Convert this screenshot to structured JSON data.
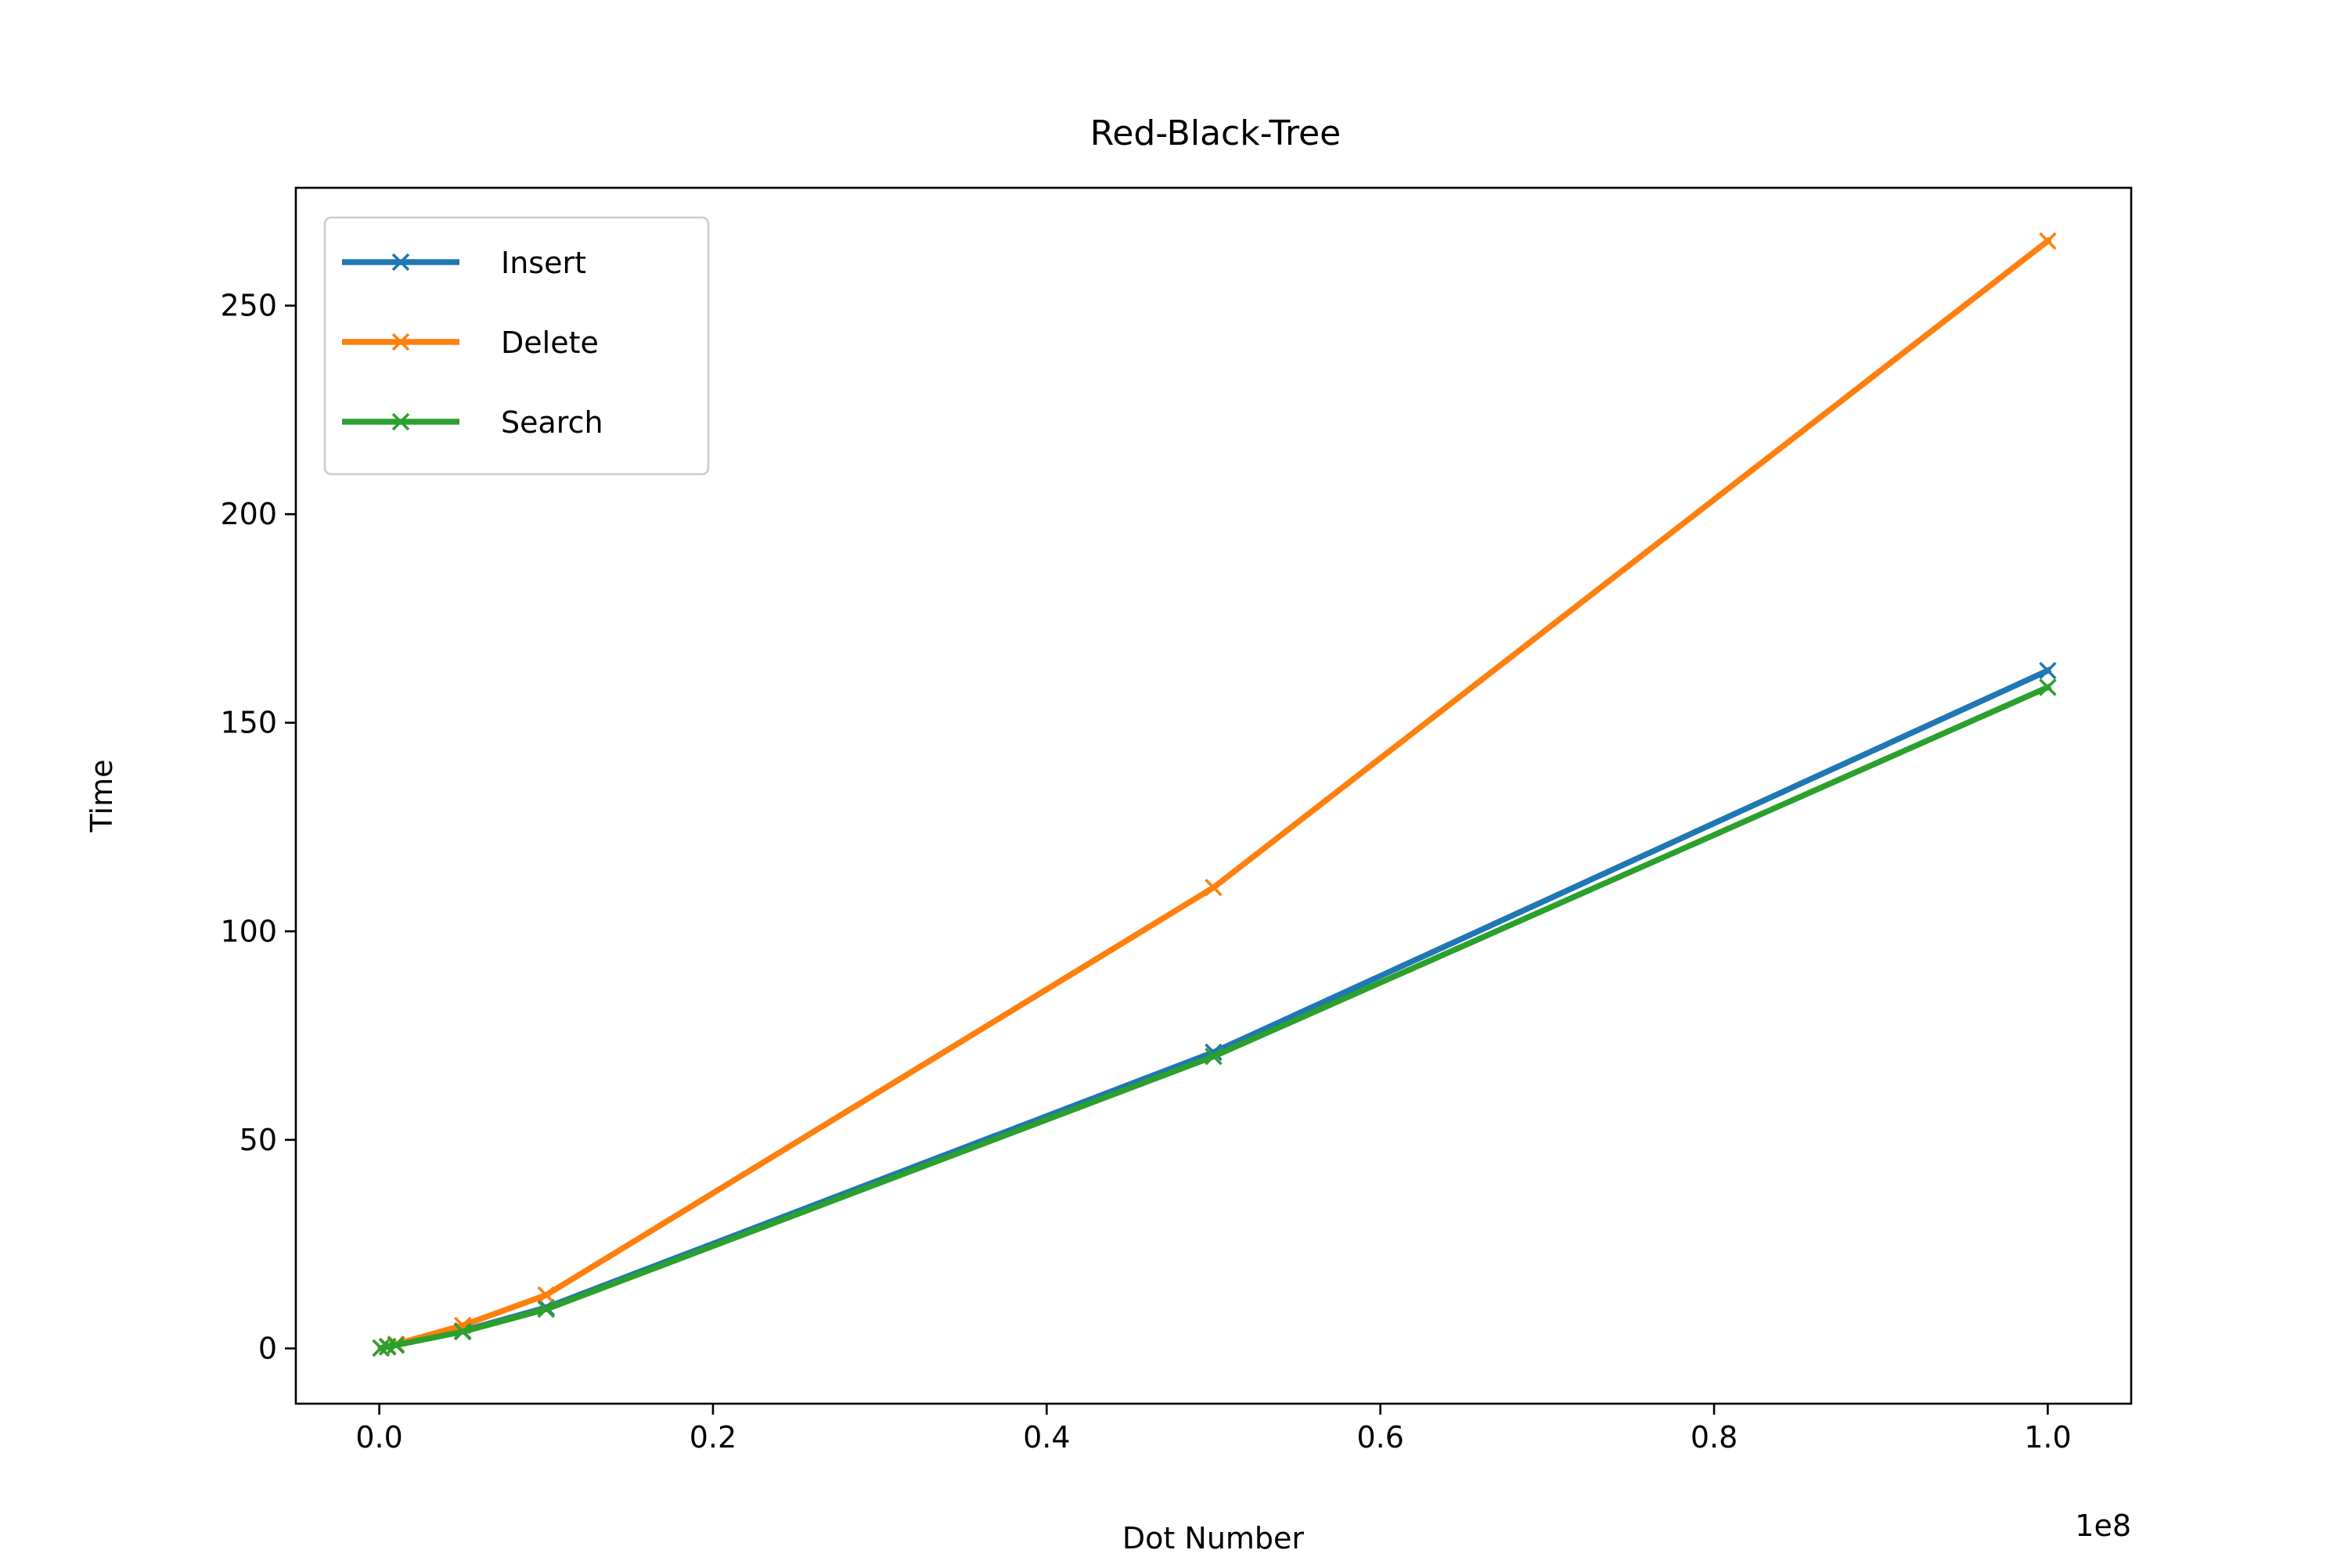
{
  "chart_data": {
    "type": "line",
    "title": "Red-Black-Tree",
    "xlabel": "Dot Number",
    "ylabel": "Time",
    "x_offset_label": "1e8",
    "xlim": [
      -5000000,
      105000000
    ],
    "ylim": [
      -13.25,
      278.25
    ],
    "xticks": [
      0,
      20000000,
      40000000,
      60000000,
      80000000,
      100000000
    ],
    "xtick_labels": [
      "0.0",
      "0.2",
      "0.4",
      "0.6",
      "0.8",
      "1.0"
    ],
    "yticks": [
      0,
      50,
      100,
      150,
      200,
      250
    ],
    "ytick_labels": [
      "0",
      "50",
      "100",
      "150",
      "200",
      "250"
    ],
    "grid": false,
    "legend_position": "upper-left",
    "marker": "x",
    "x": [
      100000,
      500000,
      1000000,
      5000000,
      10000000,
      50000000,
      100000000
    ],
    "series": [
      {
        "name": "Insert",
        "color": "#1f77b4",
        "values": [
          0.1,
          0.4,
          0.8,
          4.2,
          9.8,
          71.0,
          162.5
        ]
      },
      {
        "name": "Delete",
        "color": "#ff7f0e",
        "values": [
          0.1,
          0.5,
          1.0,
          5.5,
          12.8,
          110.5,
          265.5
        ]
      },
      {
        "name": "Search",
        "color": "#2ca02c",
        "values": [
          0.1,
          0.4,
          0.8,
          4.0,
          9.4,
          70.0,
          158.5
        ]
      }
    ]
  }
}
